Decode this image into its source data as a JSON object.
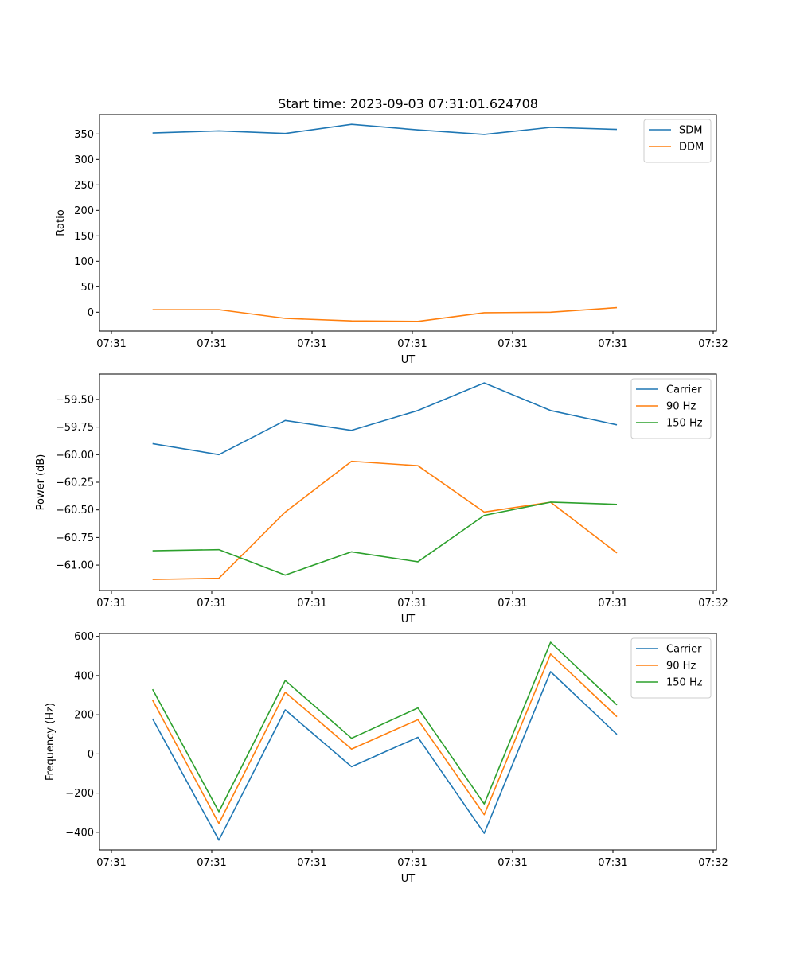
{
  "chart_data": [
    {
      "type": "line",
      "title": "Start time: 2023-09-03 07:31:01.624708",
      "xlabel": "UT",
      "ylabel": "Ratio",
      "xticks": [
        "07:31",
        "07:31",
        "07:31",
        "07:31",
        "07:31",
        "07:31",
        "07:32"
      ],
      "yticks": [
        "0",
        "50",
        "100",
        "150",
        "200",
        "250",
        "300",
        "350"
      ],
      "ytick_values": [
        0,
        50,
        100,
        150,
        200,
        250,
        300,
        350
      ],
      "ylim": [
        -37,
        388
      ],
      "x": [
        1,
        2,
        3,
        4,
        5,
        6,
        7,
        8
      ],
      "xlim": [
        0.2,
        9.5
      ],
      "legend_position": "top-right",
      "series": [
        {
          "name": "SDM",
          "color": "#1f77b4",
          "values": [
            352,
            356,
            351,
            369,
            358,
            349,
            363,
            359
          ]
        },
        {
          "name": "DDM",
          "color": "#ff7f0e",
          "values": [
            5,
            5,
            -12,
            -17,
            -18,
            -1,
            0,
            9
          ]
        }
      ]
    },
    {
      "type": "line",
      "title": "",
      "xlabel": "UT",
      "ylabel": "Power (dB)",
      "xticks": [
        "07:31",
        "07:31",
        "07:31",
        "07:31",
        "07:31",
        "07:31",
        "07:32"
      ],
      "yticks": [
        "−61.00",
        "−60.75",
        "−60.50",
        "−60.25",
        "−60.00",
        "−59.75",
        "−59.50"
      ],
      "ytick_values": [
        -61.0,
        -60.75,
        -60.5,
        -60.25,
        -60.0,
        -59.75,
        -59.5
      ],
      "ylim": [
        -61.23,
        -59.27
      ],
      "x": [
        1,
        2,
        3,
        4,
        5,
        6,
        7,
        8
      ],
      "xlim": [
        0.2,
        9.5
      ],
      "legend_position": "top-right",
      "series": [
        {
          "name": "Carrier",
          "color": "#1f77b4",
          "values": [
            -59.9,
            -60.0,
            -59.69,
            -59.78,
            -59.6,
            -59.35,
            -59.6,
            -59.73
          ]
        },
        {
          "name": "90 Hz",
          "color": "#ff7f0e",
          "values": [
            -61.13,
            -61.12,
            -60.52,
            -60.06,
            -60.1,
            -60.52,
            -60.43,
            -60.89
          ]
        },
        {
          "name": "150 Hz",
          "color": "#2ca02c",
          "values": [
            -60.87,
            -60.86,
            -61.09,
            -60.88,
            -60.97,
            -60.55,
            -60.43,
            -60.45
          ]
        }
      ]
    },
    {
      "type": "line",
      "title": "",
      "xlabel": "UT",
      "ylabel": "Frequency (Hz)",
      "xticks": [
        "07:31",
        "07:31",
        "07:31",
        "07:31",
        "07:31",
        "07:31",
        "07:32"
      ],
      "yticks": [
        "−400",
        "−200",
        "0",
        "200",
        "400",
        "600"
      ],
      "ytick_values": [
        -400,
        -200,
        0,
        200,
        400,
        600
      ],
      "ylim": [
        -490,
        615
      ],
      "x": [
        1,
        2,
        3,
        4,
        5,
        6,
        7,
        8
      ],
      "xlim": [
        0.2,
        9.5
      ],
      "legend_position": "top-right",
      "series": [
        {
          "name": "Carrier",
          "color": "#1f77b4",
          "values": [
            180,
            -440,
            225,
            -65,
            85,
            -405,
            420,
            100
          ]
        },
        {
          "name": "90 Hz",
          "color": "#ff7f0e",
          "values": [
            275,
            -355,
            315,
            25,
            175,
            -310,
            510,
            190
          ]
        },
        {
          "name": "150 Hz",
          "color": "#2ca02c",
          "values": [
            330,
            -295,
            375,
            80,
            235,
            -255,
            570,
            250
          ]
        }
      ]
    }
  ]
}
